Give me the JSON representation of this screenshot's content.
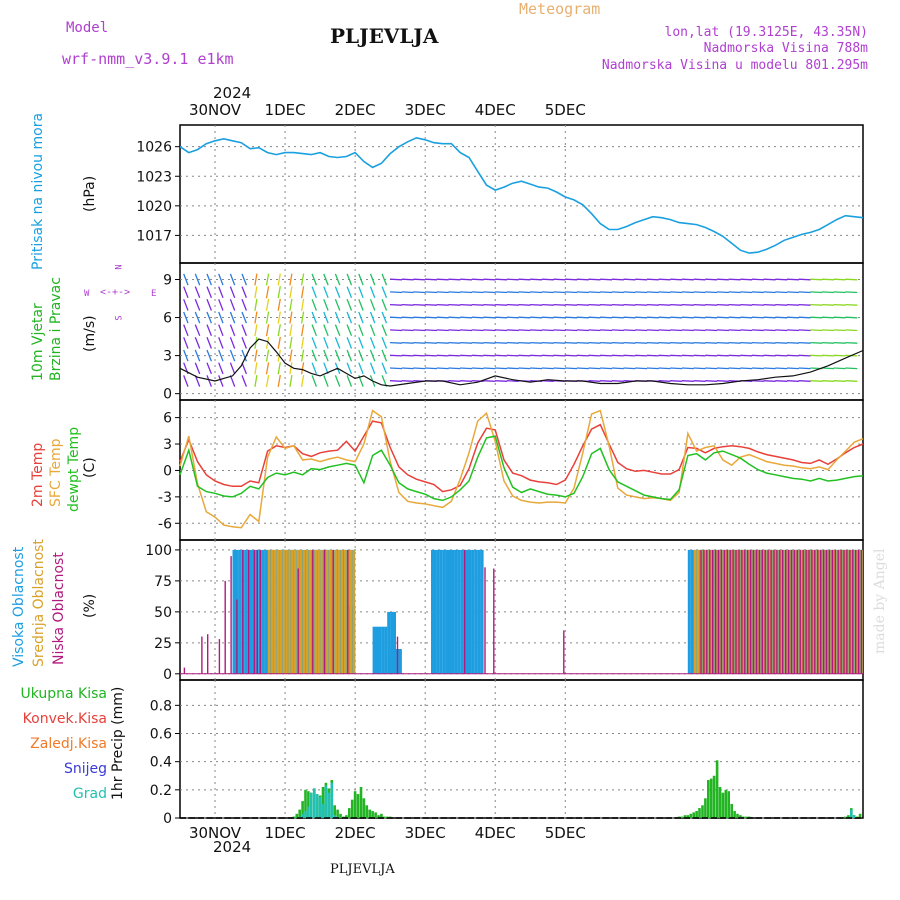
{
  "header": {
    "model_label": "Model",
    "model_name": "wrf-nmm_v3.9.1  e1km",
    "station": "PLJEVLJA",
    "product": "Meteogram",
    "coords": "lon,lat (19.3125E, 43.35N)",
    "elevation": "Nadmorska Visina 788m",
    "model_elevation": "Nadmorska Visina u modelu 801.295m",
    "footer_station": "PLJEVLJA",
    "watermark": "made by Angel"
  },
  "colors": {
    "pressure": "#1aa0e0",
    "temp": "#e8403a",
    "sfc_temp": "#e8a83a",
    "dewpoint": "#22c022",
    "cloud_high": "#1e9ee0",
    "cloud_mid": "#d8a22a",
    "cloud_low": "#b01a7e",
    "precip_total": "#22b422",
    "precip_conv": "#e8403a",
    "precip_frz": "#f07a28",
    "precip_snow": "#3a3ad8",
    "precip_hail": "#22c0b0",
    "header_purple": "#b040d0",
    "header_orange": "#e8b070"
  },
  "chart_data": [
    {
      "type": "line",
      "panel": "pressure",
      "ylabel": "Pritisak na nivou mora",
      "unit": "(hPa)",
      "yticks": [
        1017,
        1020,
        1023,
        1026
      ],
      "ylim": [
        1014.2,
        1028.2
      ],
      "x_hours": [
        0,
        3,
        6,
        9,
        12,
        15,
        18,
        21,
        24,
        27,
        30,
        33,
        36,
        39,
        42,
        45,
        48,
        51,
        54,
        57,
        60,
        63,
        66,
        69,
        72,
        75,
        78,
        81,
        84,
        87,
        90,
        93,
        96,
        99,
        102,
        105,
        108,
        111,
        114,
        117,
        120,
        123,
        126,
        129,
        132,
        135,
        138,
        141,
        144,
        147,
        150,
        153,
        156,
        159,
        162,
        165,
        168,
        171,
        174,
        177,
        180,
        183,
        186,
        189,
        192,
        195,
        198,
        201,
        204,
        207,
        210,
        213,
        216,
        219,
        222,
        225,
        228,
        231,
        234
      ],
      "series": [
        {
          "values": [
            1026.0,
            1025.4,
            1025.7,
            1026.3,
            1026.6,
            1026.8,
            1026.6,
            1026.4,
            1025.8,
            1025.9,
            1025.4,
            1025.2,
            1025.4,
            1025.4,
            1025.3,
            1025.2,
            1025.4,
            1025.0,
            1024.9,
            1025.0,
            1025.4,
            1024.5,
            1023.9,
            1024.3,
            1025.3,
            1026.0,
            1026.5,
            1026.9,
            1026.7,
            1026.4,
            1026.3,
            1026.3,
            1025.4,
            1024.9,
            1023.5,
            1022.1,
            1021.6,
            1021.9,
            1022.3,
            1022.5,
            1022.2,
            1021.9,
            1021.8,
            1021.4,
            1020.9,
            1020.6,
            1020.1,
            1019.2,
            1018.2,
            1017.6,
            1017.6,
            1017.9,
            1018.3,
            1018.6,
            1018.9,
            1018.8,
            1018.6,
            1018.3,
            1018.2,
            1018.1,
            1017.8,
            1017.4,
            1016.9,
            1016.2,
            1015.5,
            1015.2,
            1015.3,
            1015.6,
            1016.0,
            1016.5,
            1016.8,
            1017.1,
            1017.3,
            1017.6,
            1018.1,
            1018.6,
            1019.0,
            1018.9,
            1018.8
          ]
        }
      ]
    },
    {
      "type": "line",
      "panel": "wind",
      "ylabel": "10m Vjetar Brzina i Pravac",
      "unit": "(m/s)",
      "compass": {
        "n": "N",
        "s": "S",
        "e": "E",
        "w": "W"
      },
      "yticks": [
        0,
        3,
        6,
        9
      ],
      "ylim": [
        -0.5,
        10.3
      ],
      "x_hours": [
        0,
        6,
        12,
        18,
        21,
        24,
        27,
        30,
        33,
        36,
        39,
        42,
        45,
        48,
        51,
        54,
        57,
        60,
        63,
        66,
        69,
        72,
        78,
        84,
        90,
        96,
        102,
        108,
        114,
        120,
        126,
        132,
        138,
        144,
        150,
        156,
        162,
        168,
        174,
        180,
        186,
        192,
        198,
        204,
        210,
        216,
        222,
        228,
        234
      ],
      "series": [
        {
          "name": "speed",
          "values": [
            2.0,
            1.3,
            1.0,
            1.4,
            2.2,
            3.6,
            4.3,
            4.1,
            3.3,
            2.4,
            2.0,
            1.9,
            1.6,
            1.4,
            1.7,
            2.0,
            1.6,
            1.2,
            1.4,
            1.0,
            0.7,
            0.6,
            0.8,
            1.0,
            1.0,
            0.7,
            0.9,
            1.4,
            1.1,
            0.9,
            1.1,
            1.0,
            1.0,
            0.8,
            0.8,
            1.0,
            1.0,
            0.8,
            0.7,
            0.7,
            0.8,
            1.0,
            1.1,
            1.3,
            1.4,
            1.7,
            2.2,
            2.8,
            3.4
          ]
        }
      ]
    },
    {
      "type": "line",
      "panel": "temperature",
      "ylabel": "(C)",
      "series_labels": [
        "2m Temp",
        "SFC Temp",
        "dewpt Temp"
      ],
      "yticks": [
        -6,
        -3,
        0,
        3,
        6
      ],
      "ylim": [
        -7.9,
        8.0
      ],
      "x_hours": [
        0,
        3,
        6,
        9,
        12,
        15,
        18,
        21,
        24,
        27,
        30,
        33,
        36,
        39,
        42,
        45,
        48,
        51,
        54,
        57,
        60,
        63,
        66,
        69,
        72,
        75,
        78,
        81,
        84,
        87,
        90,
        93,
        96,
        99,
        102,
        105,
        108,
        111,
        114,
        117,
        120,
        123,
        126,
        129,
        132,
        135,
        138,
        141,
        144,
        147,
        150,
        153,
        156,
        159,
        162,
        165,
        168,
        171,
        174,
        177,
        180,
        183,
        186,
        189,
        192,
        195,
        198,
        201,
        204,
        207,
        210,
        213,
        216,
        219,
        222,
        225,
        228,
        231,
        234
      ],
      "series": [
        {
          "name": "2m Temp",
          "values": [
            1.0,
            3.5,
            1.0,
            -0.5,
            -1.2,
            -1.6,
            -1.8,
            -1.8,
            -1.2,
            -1.4,
            2.2,
            2.8,
            2.6,
            2.8,
            1.9,
            1.6,
            2.0,
            2.2,
            2.3,
            3.3,
            2.2,
            3.9,
            5.6,
            5.4,
            2.6,
            0.4,
            -0.5,
            -1.0,
            -1.3,
            -1.6,
            -2.4,
            -2.2,
            -1.7,
            0.2,
            3.1,
            4.8,
            4.6,
            1.2,
            -0.3,
            -0.6,
            -1.1,
            -1.3,
            -1.4,
            -1.6,
            -1.1,
            0.7,
            2.8,
            4.7,
            5.2,
            3.0,
            0.9,
            0.2,
            -0.1,
            0.0,
            -0.2,
            -0.4,
            -0.4,
            0.1,
            2.6,
            2.5,
            2.0,
            2.5,
            2.7,
            2.8,
            2.7,
            2.5,
            2.1,
            1.8,
            1.6,
            1.4,
            1.2,
            0.9,
            0.8,
            1.2,
            0.7,
            1.3,
            2.0,
            2.6,
            3.0
          ]
        },
        {
          "name": "SFC Temp",
          "values": [
            0.5,
            3.9,
            -1.5,
            -4.7,
            -5.3,
            -6.2,
            -6.4,
            -6.5,
            -5.0,
            -5.8,
            1.5,
            3.8,
            2.5,
            2.8,
            1.2,
            1.3,
            1.0,
            1.3,
            1.5,
            1.2,
            1.0,
            3.0,
            6.8,
            6.1,
            1.0,
            -2.5,
            -3.5,
            -3.7,
            -3.8,
            -4.0,
            -4.2,
            -3.5,
            -1.0,
            2.0,
            5.6,
            6.5,
            3.3,
            -1.2,
            -2.9,
            -3.4,
            -3.6,
            -3.7,
            -3.6,
            -3.6,
            -3.7,
            -2.0,
            2.0,
            6.4,
            6.8,
            2.8,
            -2.0,
            -2.8,
            -3.0,
            -3.2,
            -3.1,
            -3.2,
            -3.4,
            -2.5,
            4.2,
            2.2,
            2.6,
            2.8,
            1.2,
            0.6,
            1.5,
            1.8,
            1.4,
            1.0,
            0.8,
            0.6,
            0.5,
            0.3,
            0.2,
            0.4,
            0.1,
            1.2,
            2.2,
            3.2,
            3.6
          ]
        },
        {
          "name": "dewpt Temp",
          "values": [
            -0.5,
            2.3,
            -1.8,
            -2.4,
            -2.6,
            -2.9,
            -3.0,
            -2.6,
            -1.8,
            -2.1,
            -0.8,
            -0.3,
            -0.5,
            -0.2,
            -0.5,
            0.2,
            0.1,
            0.4,
            0.6,
            0.8,
            0.6,
            -1.4,
            1.7,
            2.3,
            0.6,
            -1.4,
            -2.1,
            -2.4,
            -2.7,
            -3.2,
            -3.4,
            -3.0,
            -2.2,
            -1.2,
            1.5,
            3.7,
            3.9,
            0.3,
            -1.9,
            -2.5,
            -2.1,
            -2.4,
            -2.7,
            -2.8,
            -3.0,
            -2.6,
            -0.7,
            1.9,
            2.5,
            0.1,
            -1.3,
            -1.8,
            -2.3,
            -2.8,
            -3.0,
            -3.2,
            -3.3,
            -2.2,
            1.7,
            1.9,
            1.2,
            2.0,
            2.2,
            1.8,
            1.4,
            0.7,
            0.1,
            -0.3,
            -0.5,
            -0.7,
            -0.9,
            -1.0,
            -1.2,
            -0.9,
            -1.2,
            -1.1,
            -0.9,
            -0.7,
            -0.6
          ]
        }
      ]
    },
    {
      "type": "bar",
      "panel": "clouds",
      "ylabel": "(%)",
      "series_labels": [
        "Visoka Oblacnost",
        "Srednja Oblacnost",
        "Niska Oblacnost"
      ],
      "yticks": [
        0,
        25,
        50,
        75,
        100
      ],
      "ylim": [
        -5,
        108
      ],
      "series": [
        {
          "name": "Visoka Oblacnost",
          "segments": [
            {
              "from": 18,
              "to": 60,
              "value": 100
            },
            {
              "from": 57,
              "to": 60,
              "value": 55
            },
            {
              "from": 66,
              "to": 71,
              "value": 38
            },
            {
              "from": 72,
              "to": 76,
              "value": 20
            },
            {
              "from": 71,
              "to": 74,
              "value": 50
            },
            {
              "from": 86,
              "to": 104,
              "value": 100
            },
            {
              "from": 174,
              "to": 234,
              "value": 100
            }
          ]
        },
        {
          "name": "Srednja Oblacnost",
          "segments": [
            {
              "from": 30,
              "to": 60,
              "value": 100
            },
            {
              "from": 176,
              "to": 234,
              "value": 100
            }
          ]
        },
        {
          "name": "Niska Oblacnost",
          "segments": [
            {
              "from": 1,
              "to": 2,
              "value": 5
            },
            {
              "from": 7,
              "to": 8,
              "value": 30
            },
            {
              "from": 9,
              "to": 10,
              "value": 32
            },
            {
              "from": 13,
              "to": 14,
              "value": 28
            },
            {
              "from": 15,
              "to": 16,
              "value": 75
            },
            {
              "from": 17,
              "to": 18,
              "value": 95
            },
            {
              "from": 19,
              "to": 20,
              "value": 60
            },
            {
              "from": 21,
              "to": 22,
              "value": 100
            },
            {
              "from": 23,
              "to": 24,
              "value": 100
            },
            {
              "from": 25,
              "to": 28,
              "value": 100
            },
            {
              "from": 40,
              "to": 41,
              "value": 85
            },
            {
              "from": 45,
              "to": 46,
              "value": 100
            },
            {
              "from": 49,
              "to": 50,
              "value": 100
            },
            {
              "from": 52,
              "to": 53,
              "value": 100
            },
            {
              "from": 57,
              "to": 58,
              "value": 100
            },
            {
              "from": 74,
              "to": 75,
              "value": 30
            },
            {
              "from": 97,
              "to": 98,
              "value": 100
            },
            {
              "from": 104,
              "to": 105,
              "value": 86
            },
            {
              "from": 107,
              "to": 108,
              "value": 85
            },
            {
              "from": 131,
              "to": 132,
              "value": 35
            },
            {
              "from": 178,
              "to": 234,
              "value": 100
            }
          ]
        }
      ]
    },
    {
      "type": "bar",
      "panel": "precipitation",
      "ylabel": "1hr Precip (mm)",
      "series_labels": [
        "Ukupna Kisa",
        "Konvek.Kisa",
        "Zaledj.Kisa",
        "Snijeg",
        "Grad"
      ],
      "yticks": [
        0,
        0.2,
        0.4,
        0.6,
        0.8
      ],
      "ylim": [
        0,
        0.98
      ],
      "x_hours": [
        39,
        40,
        41,
        42,
        43,
        44,
        45,
        46,
        47,
        48,
        49,
        50,
        51,
        52,
        53,
        54,
        55,
        56,
        57,
        58,
        59,
        60,
        61,
        62,
        63,
        64,
        65,
        66,
        67,
        68,
        69,
        70,
        71,
        72,
        171,
        172,
        173,
        174,
        175,
        176,
        177,
        178,
        179,
        180,
        181,
        182,
        183,
        184,
        185,
        186,
        187,
        188,
        189,
        190,
        191,
        192,
        193,
        194,
        195,
        228,
        229,
        230,
        231,
        232,
        233
      ],
      "series": [
        {
          "name": "Ukupna Kisa",
          "values": [
            0.01,
            0.03,
            0.06,
            0.12,
            0.2,
            0.19,
            0.18,
            0.21,
            0.17,
            0.16,
            0.22,
            0.25,
            0.21,
            0.27,
            0.09,
            0.06,
            0.03,
            0.01,
            0.02,
            0.07,
            0.13,
            0.19,
            0.17,
            0.22,
            0.14,
            0.09,
            0.06,
            0.05,
            0.04,
            0.02,
            0.03,
            0.01,
            0.01,
            0.01,
            0.01,
            0.01,
            0.02,
            0.02,
            0.03,
            0.04,
            0.05,
            0.07,
            0.09,
            0.14,
            0.27,
            0.28,
            0.3,
            0.41,
            0.22,
            0.18,
            0.2,
            0.19,
            0.1,
            0.05,
            0.03,
            0.02,
            0.01,
            0.01,
            0.01,
            0.01,
            0.02,
            0.07,
            0.02,
            0.01,
            0.03
          ]
        },
        {
          "name": "Snijeg",
          "values": [
            0,
            0,
            0.01,
            0.03,
            0.05,
            0.08,
            0.18,
            0.21,
            0.17,
            0.15,
            0.1,
            0.23,
            0.18,
            0.25,
            0.02,
            0.01,
            0,
            0,
            0,
            0,
            0,
            0,
            0,
            0,
            0,
            0,
            0,
            0,
            0,
            0,
            0,
            0,
            0,
            0,
            0,
            0,
            0,
            0,
            0,
            0,
            0,
            0,
            0,
            0,
            0,
            0,
            0,
            0,
            0,
            0,
            0,
            0,
            0,
            0,
            0,
            0,
            0,
            0,
            0,
            0,
            0,
            0.06,
            0.02,
            0,
            0
          ]
        }
      ]
    }
  ],
  "axis": {
    "start_label_top": "2024",
    "start_label_bottom": "2024",
    "day_labels": [
      {
        "label": "30NOV",
        "hour": 12
      },
      {
        "label": "1DEC",
        "hour": 36
      },
      {
        "label": "2DEC",
        "hour": 60
      },
      {
        "label": "3DEC",
        "hour": 84
      },
      {
        "label": "4DEC",
        "hour": 108
      },
      {
        "label": "5DEC",
        "hour": 132
      }
    ],
    "day_label_hours": [
      12,
      36,
      60,
      84,
      108,
      132
    ],
    "x_hour_range": [
      0,
      234
    ]
  }
}
